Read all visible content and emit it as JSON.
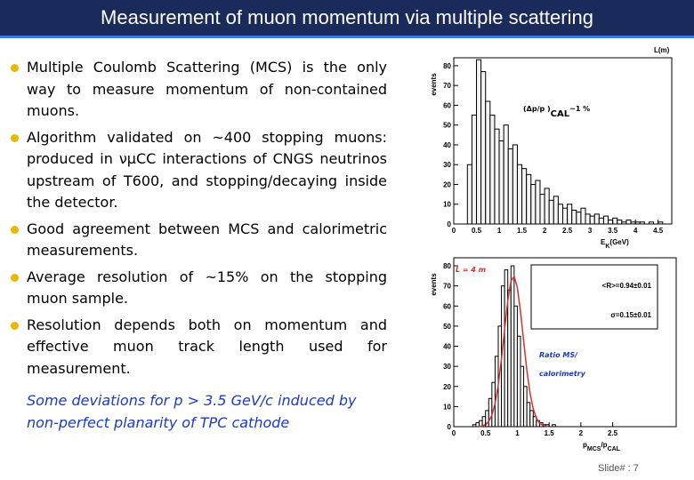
{
  "header": {
    "title": "Measurement of muon momentum via multiple scattering"
  },
  "bullets": [
    "Multiple Coulomb Scattering (MCS) is the only way to measure momentum of non-contained muons.",
    "Algorithm validated on ~400 stopping muons: produced in νμCC interactions of CNGS neutrinos upstream of T600, and stopping/decaying inside the detector.",
    "Good agreement between MCS and calorimetric measurements.",
    "Average resolution of ~15% on the stopping muon sample.",
    "Resolution depends both on momentum and effective muon track length used for measurement."
  ],
  "note": "Some deviations for p > 3.5 GeV/c induced by non-perfect planarity of TPC cathode",
  "footer": "Slide# : 7",
  "chart_data": [
    {
      "type": "histogram",
      "corner_label": "L(m)",
      "y_label": "events",
      "x_label_parts": [
        "E",
        "K",
        "(GeV)"
      ],
      "annotation_parts": [
        "(Δp/p )",
        "CAL",
        "~1 %"
      ],
      "bins": [
        0.2,
        0.3,
        0.4,
        0.5,
        0.6,
        0.7,
        0.8,
        0.9,
        1.0,
        1.1,
        1.2,
        1.3,
        1.4,
        1.5,
        1.6,
        1.7,
        1.8,
        1.9,
        2.0,
        2.1,
        2.2,
        2.3,
        2.4,
        2.5,
        2.6,
        2.7,
        2.8,
        2.9,
        3.0,
        3.1,
        3.2,
        3.3,
        3.4,
        3.5,
        3.6,
        3.7,
        3.8,
        3.9,
        4.0,
        4.1,
        4.2,
        4.3,
        4.4,
        4.5,
        4.6,
        4.7
      ],
      "values": [
        0,
        30,
        55,
        83,
        77,
        62,
        55,
        48,
        42,
        50,
        38,
        40,
        30,
        28,
        25,
        20,
        22,
        15,
        18,
        12,
        14,
        10,
        8,
        10,
        7,
        6,
        8,
        5,
        4,
        5,
        3,
        4,
        2,
        3,
        2,
        1,
        2,
        1,
        1,
        1,
        0,
        1,
        0,
        1,
        0
      ],
      "color": "#f4f4f4",
      "xlim": [
        0,
        4.8
      ],
      "ylim": [
        0,
        84
      ],
      "xticks": [
        0,
        0.5,
        1,
        1.5,
        2,
        2.5,
        3,
        3.5,
        4,
        4.5
      ],
      "yticks": [
        0,
        10,
        20,
        30,
        40,
        50,
        60,
        70,
        80
      ]
    },
    {
      "type": "histogram",
      "y_label": "events",
      "x_label_parts": [
        "p",
        "MCS",
        "/p",
        "CAL"
      ],
      "tag": "L = 4 m",
      "stats": [
        "<R>=0.94±0.01",
        "σ=0.15±0.01"
      ],
      "caption": [
        "Ratio MS/",
        "calorimetry"
      ],
      "bins": [
        0.3,
        0.35,
        0.4,
        0.45,
        0.5,
        0.55,
        0.6,
        0.65,
        0.7,
        0.75,
        0.8,
        0.85,
        0.9,
        0.95,
        1.0,
        1.05,
        1.1,
        1.15,
        1.2,
        1.25,
        1.3,
        1.35,
        1.4,
        1.45,
        1.5,
        1.55,
        1.6
      ],
      "values": [
        1,
        2,
        3,
        5,
        8,
        14,
        22,
        35,
        50,
        70,
        78,
        68,
        80,
        60,
        45,
        30,
        20,
        12,
        8,
        5,
        3,
        2,
        1,
        1,
        0,
        1
      ],
      "color": "#ffffff",
      "fit": {
        "color": "#d83030",
        "x": [
          0.4,
          0.45,
          0.5,
          0.55,
          0.6,
          0.65,
          0.7,
          0.75,
          0.8,
          0.85,
          0.9,
          0.95,
          1.0,
          1.05,
          1.1,
          1.15,
          1.2,
          1.25,
          1.3,
          1.35,
          1.4,
          1.45,
          1.5
        ],
        "values": [
          0.1,
          0.4,
          1.0,
          2.6,
          5.7,
          11.6,
          20.8,
          33.6,
          48.5,
          62.6,
          72.4,
          74.8,
          69.2,
          57.3,
          42.5,
          28.1,
          16.7,
          8.9,
          4.2,
          1.8,
          0.7,
          0.2,
          0.1
        ]
      },
      "xlim": [
        0,
        3.5
      ],
      "ylim": [
        0,
        84
      ],
      "xticks": [
        0,
        0.5,
        1,
        1.5,
        2,
        2.5
      ],
      "yticks": [
        0,
        10,
        20,
        30,
        40,
        50,
        60,
        70,
        80
      ]
    }
  ]
}
